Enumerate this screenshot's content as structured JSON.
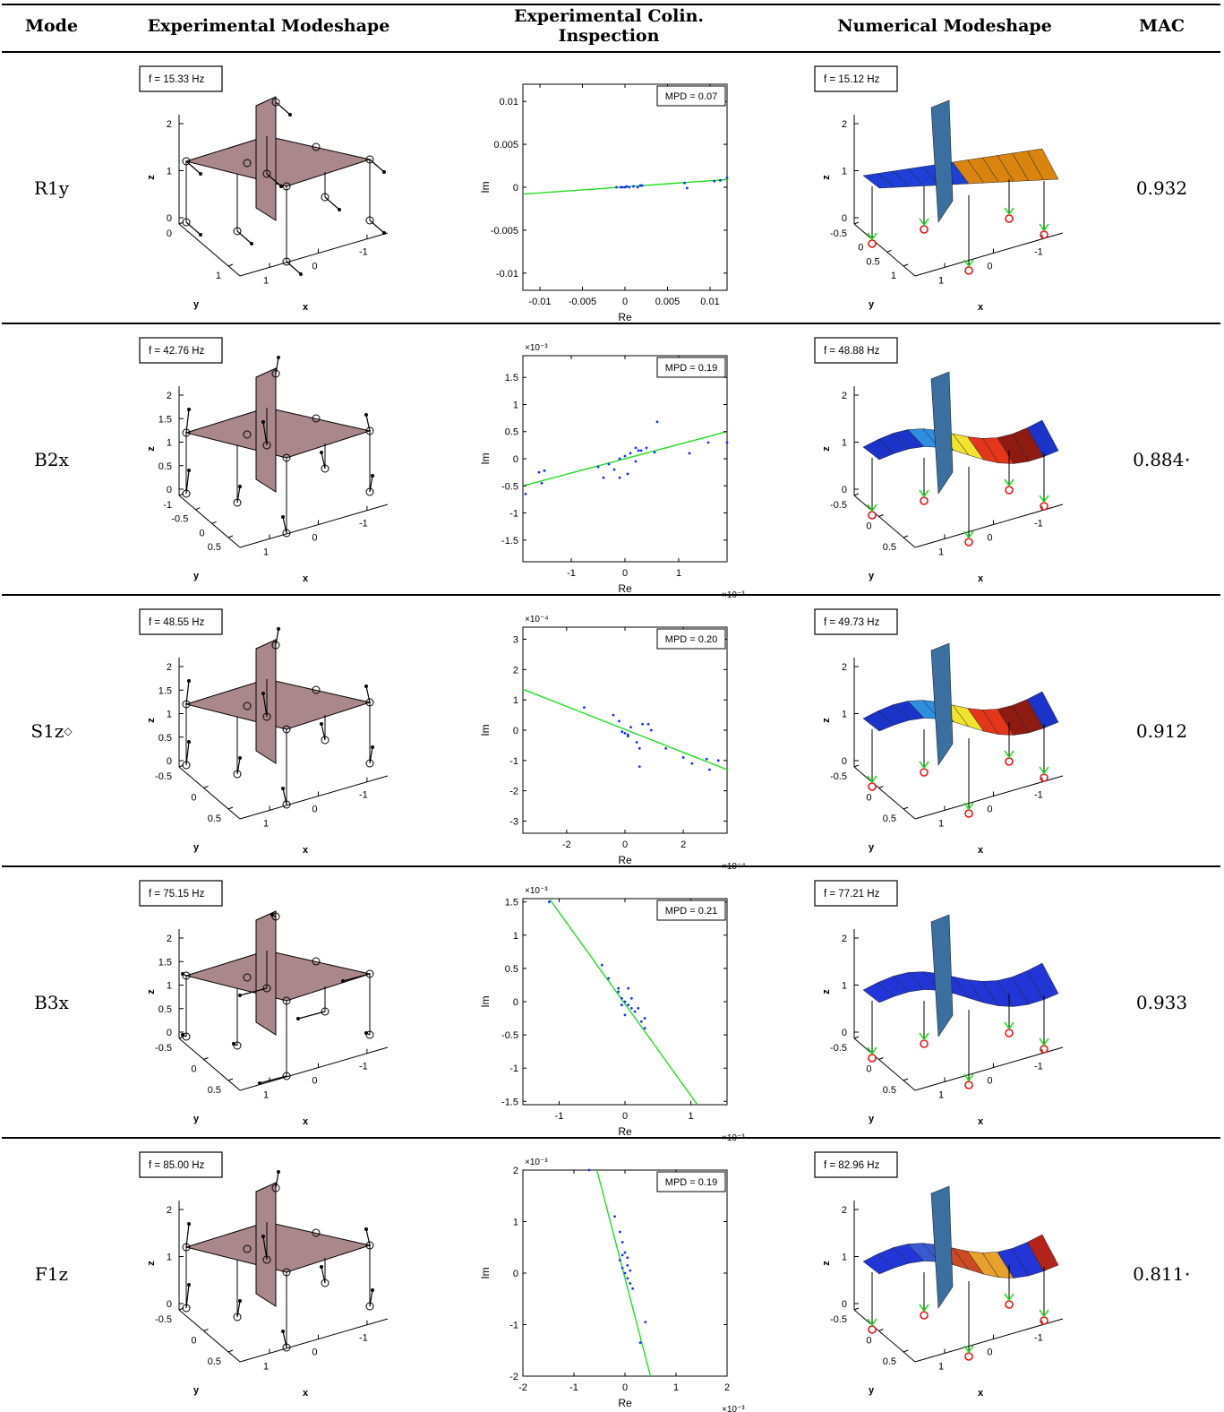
{
  "header": {
    "mode": "Mode",
    "exp_shape": "Experimental Modeshape",
    "colin_line1": "Experimental Colin.",
    "colin_line2": "Inspection",
    "num_shape": "Numerical Modeshape",
    "mac": "MAC"
  },
  "axis_labels": {
    "x": "x",
    "y": "y",
    "z": "z",
    "re": "Re",
    "im": "Im"
  },
  "rows": [
    {
      "mode": "R1y",
      "mode_sup": "",
      "exp_freq": "f = 15.33 Hz",
      "num_freq": "f = 15.12 Hz",
      "mac": "0.932",
      "mac_star": "",
      "mpd": "MPD = 0.07",
      "exp_z_ticks": [
        "2",
        "1",
        "0"
      ],
      "exp_y_ticks": [
        "0",
        "1"
      ],
      "num_z_ticks": [
        "2",
        "1",
        "0"
      ],
      "num_y_ticks": [
        "-0.5",
        "0",
        "0.5",
        "1"
      ],
      "x_ticks": [
        "1",
        "0",
        "-1"
      ],
      "surface": "orange"
    },
    {
      "mode": "B2x",
      "mode_sup": "",
      "exp_freq": "f = 42.76 Hz",
      "num_freq": "f = 48.88 Hz",
      "mac": "0.884",
      "mac_star": "⋆",
      "mpd": "MPD = 0.19",
      "exp_z_ticks": [
        "2",
        "1.5",
        "1",
        "0.5",
        "0"
      ],
      "exp_y_ticks": [
        "-1",
        "-0.5",
        "0",
        "0.5"
      ],
      "num_z_ticks": [
        "2",
        "1",
        "0"
      ],
      "num_y_ticks": [
        "-0.5",
        "0",
        "0.5"
      ],
      "x_ticks": [
        "1",
        "0",
        "-1"
      ],
      "surface": "rainbow"
    },
    {
      "mode": "S1z",
      "mode_sup": "◇",
      "exp_freq": "f = 48.55 Hz",
      "num_freq": "f = 49.73 Hz",
      "mac": "0.912",
      "mac_star": "",
      "mpd": "MPD = 0.20",
      "exp_z_ticks": [
        "2",
        "1.5",
        "1",
        "0.5",
        "0"
      ],
      "exp_y_ticks": [
        "-0.5",
        "0",
        "0.5"
      ],
      "num_z_ticks": [
        "2",
        "1",
        "0"
      ],
      "num_y_ticks": [
        "-0.5",
        "0",
        "0.5"
      ],
      "x_ticks": [
        "1",
        "0",
        "-1"
      ],
      "surface": "rainbow"
    },
    {
      "mode": "B3x",
      "mode_sup": "",
      "exp_freq": "f = 75.15 Hz",
      "num_freq": "f = 77.21 Hz",
      "mac": "0.933",
      "mac_star": "",
      "mpd": "MPD = 0.21",
      "exp_z_ticks": [
        "2",
        "1.5",
        "1",
        "0.5",
        "0"
      ],
      "exp_y_ticks": [
        "-0.5",
        "0",
        "0.5"
      ],
      "num_z_ticks": [
        "2",
        "1",
        "0"
      ],
      "num_y_ticks": [
        "-0.5",
        "0",
        "0.5"
      ],
      "x_ticks": [
        "1",
        "0",
        "-1"
      ],
      "surface": "blue"
    },
    {
      "mode": "F1z",
      "mode_sup": "",
      "exp_freq": "f = 85.00 Hz",
      "num_freq": "f = 82.96 Hz",
      "mac": "0.811",
      "mac_star": "⋆",
      "mpd": "MPD = 0.19",
      "exp_z_ticks": [
        "2",
        "1",
        "0"
      ],
      "exp_y_ticks": [
        "-0.5",
        "0",
        "0.5"
      ],
      "num_z_ticks": [
        "2",
        "1",
        "0"
      ],
      "num_y_ticks": [
        "-0.5",
        "0",
        "0.5"
      ],
      "x_ticks": [
        "1",
        "0",
        "-1"
      ],
      "surface": "mixed"
    }
  ],
  "chart_data": [
    {
      "type": "scatter",
      "title": "",
      "xlabel": "Re",
      "ylabel": "Im",
      "exponent_label": "",
      "xlim": [
        -0.012,
        0.012
      ],
      "ylim": [
        -0.012,
        0.012
      ],
      "x_ticks": [
        "-0.01",
        "-0.005",
        "0",
        "0.005",
        "0.01"
      ],
      "x_tick_values": [
        -0.01,
        -0.005,
        0,
        0.005,
        0.01
      ],
      "y_ticks": [
        "0.01",
        "0.005",
        "0",
        "-0.005",
        "-0.01"
      ],
      "y_tick_values": [
        0.01,
        0.005,
        0,
        -0.005,
        -0.01
      ],
      "x_exponent": "",
      "y_exponent": "",
      "fit_line": [
        [
          -0.012,
          -0.0008
        ],
        [
          0.012,
          0.0009
        ]
      ],
      "points": [
        [
          0,
          0
        ],
        [
          0.0005,
          0
        ],
        [
          -0.0005,
          0
        ],
        [
          0.001,
          0.0001
        ],
        [
          0.0015,
          0
        ],
        [
          0.002,
          0.0002
        ],
        [
          -0.001,
          0
        ],
        [
          0.0002,
          0.0001
        ],
        [
          -0.0003,
          0
        ],
        [
          0.007,
          0.0005
        ],
        [
          0.0073,
          -0.0001
        ],
        [
          0.0105,
          0.0007
        ],
        [
          0.0112,
          0.0008
        ],
        [
          0.012,
          0.0011
        ],
        [
          0.0018,
          0.0002
        ]
      ],
      "annotation": "MPD = 0.07"
    },
    {
      "type": "scatter",
      "title": "",
      "xlabel": "Re",
      "ylabel": "Im",
      "xlim": [
        -1.9,
        1.9
      ],
      "ylim": [
        -1.9,
        1.9
      ],
      "x_ticks": [
        "-1",
        "0",
        "1"
      ],
      "x_tick_values": [
        -1,
        0,
        1
      ],
      "y_ticks": [
        "1.5",
        "1",
        "0.5",
        "0",
        "-0.5",
        "-1",
        "-1.5"
      ],
      "y_tick_values": [
        1.5,
        1,
        0.5,
        0,
        -0.5,
        -1,
        -1.5
      ],
      "x_exponent": "×10⁻³",
      "y_exponent": "×10⁻³",
      "fit_line": [
        [
          -1.9,
          -0.5
        ],
        [
          1.9,
          0.5
        ]
      ],
      "points": [
        [
          -1.6,
          -0.25
        ],
        [
          -1.5,
          -0.22
        ],
        [
          -1.55,
          -0.45
        ],
        [
          -1.85,
          -0.65
        ],
        [
          -0.5,
          -0.15
        ],
        [
          -0.3,
          -0.1
        ],
        [
          -0.2,
          -0.2
        ],
        [
          -0.1,
          0
        ],
        [
          0,
          0.05
        ],
        [
          0.1,
          0.1
        ],
        [
          0.2,
          0.2
        ],
        [
          0.3,
          0.15
        ],
        [
          0.4,
          0.2
        ],
        [
          0.55,
          0.12
        ],
        [
          0.6,
          0.68
        ],
        [
          -0.1,
          -0.35
        ],
        [
          0.05,
          -0.28
        ],
        [
          -0.4,
          -0.35
        ],
        [
          0.2,
          -0.05
        ],
        [
          1.2,
          0.1
        ],
        [
          1.55,
          0.3
        ],
        [
          1.9,
          0.3
        ],
        [
          0.25,
          0.15
        ]
      ],
      "annotation": "MPD = 0.19"
    },
    {
      "type": "scatter",
      "title": "",
      "xlabel": "Re",
      "ylabel": "Im",
      "xlim": [
        -3.5,
        3.5
      ],
      "ylim": [
        -3.4,
        3.4
      ],
      "x_ticks": [
        "-2",
        "0",
        "2"
      ],
      "x_tick_values": [
        -2,
        0,
        2
      ],
      "y_ticks": [
        "3",
        "2",
        "1",
        "0",
        "-1",
        "-2",
        "-3"
      ],
      "y_tick_values": [
        3,
        2,
        1,
        0,
        -1,
        -2,
        -3
      ],
      "x_exponent": "×10⁻⁴",
      "y_exponent": "×10⁻⁴",
      "fit_line": [
        [
          -3.5,
          1.35
        ],
        [
          3.5,
          -1.3
        ]
      ],
      "points": [
        [
          -1.4,
          0.75
        ],
        [
          -0.4,
          0.5
        ],
        [
          -0.2,
          0.3
        ],
        [
          0,
          -0.1
        ],
        [
          0.1,
          -0.2
        ],
        [
          0.2,
          0.1
        ],
        [
          0.4,
          -0.4
        ],
        [
          0.6,
          0.2
        ],
        [
          0.8,
          0.2
        ],
        [
          0.9,
          0
        ],
        [
          0.5,
          -0.6
        ],
        [
          0.5,
          -1.2
        ],
        [
          1.4,
          -0.6
        ],
        [
          2,
          -0.9
        ],
        [
          2.3,
          -1.1
        ],
        [
          2.9,
          -1.3
        ],
        [
          3.2,
          -1.0
        ],
        [
          2.8,
          -0.95
        ],
        [
          0.1,
          -0.15
        ],
        [
          -0.1,
          -0.05
        ]
      ],
      "annotation": "MPD = 0.20"
    },
    {
      "type": "scatter",
      "title": "",
      "xlabel": "Re",
      "ylabel": "Im",
      "xlim": [
        -1.55,
        1.55
      ],
      "ylim": [
        -1.55,
        1.55
      ],
      "x_ticks": [
        "-1",
        "0",
        "1"
      ],
      "x_tick_values": [
        -1,
        0,
        1
      ],
      "y_ticks": [
        "1.5",
        "1",
        "0.5",
        "0",
        "-0.5",
        "-1",
        "-1.5"
      ],
      "y_tick_values": [
        1.5,
        1,
        0.5,
        0,
        -0.5,
        -1,
        -1.5
      ],
      "x_exponent": "×10⁻³",
      "y_exponent": "×10⁻³",
      "fit_line": [
        [
          -1.15,
          1.55
        ],
        [
          1.1,
          -1.55
        ]
      ],
      "points": [
        [
          -1.15,
          1.5
        ],
        [
          -0.35,
          0.55
        ],
        [
          -0.25,
          0.35
        ],
        [
          -0.1,
          0.2
        ],
        [
          -0.05,
          0.05
        ],
        [
          0,
          0
        ],
        [
          0.05,
          -0.05
        ],
        [
          0.1,
          -0.1
        ],
        [
          0.15,
          -0.15
        ],
        [
          -0.1,
          0.15
        ],
        [
          0.1,
          0.05
        ],
        [
          0.2,
          -0.1
        ],
        [
          0.3,
          -0.25
        ],
        [
          0.25,
          -0.3
        ],
        [
          0.3,
          -0.4
        ],
        [
          0.05,
          0.2
        ],
        [
          0.0,
          -0.2
        ],
        [
          -0.05,
          -0.05
        ]
      ],
      "annotation": "MPD = 0.21"
    },
    {
      "type": "scatter",
      "title": "",
      "xlabel": "Re",
      "ylabel": "Im",
      "xlim": [
        -2,
        2
      ],
      "ylim": [
        -2,
        2
      ],
      "x_ticks": [
        "-2",
        "-1",
        "0",
        "1",
        "2"
      ],
      "x_tick_values": [
        -2,
        -1,
        0,
        1,
        2
      ],
      "y_ticks": [
        "2",
        "1",
        "0",
        "-1",
        "-2"
      ],
      "y_tick_values": [
        2,
        1,
        0,
        -1,
        -2
      ],
      "x_exponent": "×10⁻³",
      "y_exponent": "×10⁻³",
      "fit_line": [
        [
          -0.55,
          2
        ],
        [
          0.5,
          -2
        ]
      ],
      "points": [
        [
          -0.7,
          2
        ],
        [
          -0.2,
          1.1
        ],
        [
          -0.1,
          0.8
        ],
        [
          -0.05,
          0.6
        ],
        [
          0,
          0.4
        ],
        [
          0.05,
          0.3
        ],
        [
          -0.05,
          0.1
        ],
        [
          0,
          0
        ],
        [
          0.05,
          -0.1
        ],
        [
          0.1,
          -0.2
        ],
        [
          -0.05,
          0.35
        ],
        [
          0.05,
          0.15
        ],
        [
          0.15,
          -0.3
        ],
        [
          0.4,
          -0.95
        ],
        [
          0.3,
          -1.35
        ],
        [
          -0.1,
          0.25
        ],
        [
          0.1,
          0.05
        ]
      ],
      "annotation": "MPD = 0.19"
    }
  ]
}
